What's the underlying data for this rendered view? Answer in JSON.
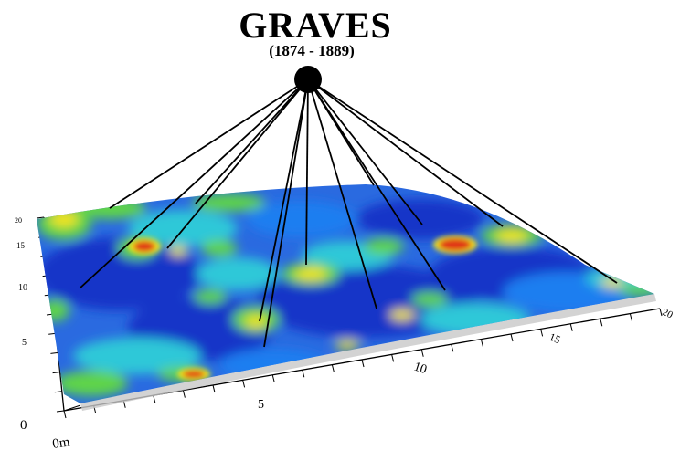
{
  "title": "GRAVES",
  "subtitle": "(1874 - 1889)",
  "x_axis": {
    "origin_label": "0m",
    "ticks": [
      "5",
      "10",
      "15",
      "20"
    ]
  },
  "y_axis": {
    "origin_label": "0",
    "ticks": [
      "5",
      "10",
      "15",
      "20"
    ]
  },
  "colors": {
    "low": "#1535c8",
    "mid_low": "#1e7ef0",
    "mid": "#2ec8d8",
    "mid_high": "#5fd44a",
    "high": "#f2e41c",
    "peak": "#e03818",
    "pointer": "#000000"
  },
  "graves_count": 13
}
